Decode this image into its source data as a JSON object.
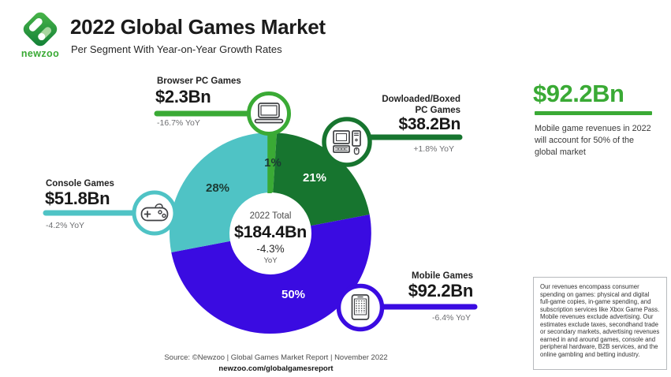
{
  "brand": {
    "wordmark": "newzoo"
  },
  "chart_data": {
    "type": "donut",
    "title": "2022 Global Games Market",
    "subtitle": "Per Segment With Year-on-Year Growth Rates",
    "start_angle_deg": -90,
    "clockwise": true,
    "total": {
      "label": "2022 Total",
      "value": "$184.4Bn",
      "yoy": "-4.3%",
      "yoy_suffix": "YoY"
    },
    "segments": [
      {
        "label": "Browser PC Games",
        "value": "$2.3Bn",
        "share_pct": 1,
        "share_label": "1%",
        "yoy": "-16.7% YoY",
        "color": "#3aaa35",
        "icon": "laptop-icon"
      },
      {
        "label": "Dowloaded/Boxed PC Games",
        "value": "$38.2Bn",
        "share_pct": 21,
        "share_label": "21%",
        "yoy": "+1.8% YoY",
        "color": "#17752f",
        "icon": "desktop-pc-icon"
      },
      {
        "label": "Mobile Games",
        "value": "$92.2Bn",
        "share_pct": 50,
        "share_label": "50%",
        "yoy": "-6.4% YoY",
        "color": "#3a0be1",
        "icon": "smartphone-icon"
      },
      {
        "label": "Console Games",
        "value": "$51.8Bn",
        "share_pct": 28,
        "share_label": "28%",
        "yoy": "-4.2% YoY",
        "color": "#4fc3c5",
        "icon": "gamepad-icon"
      }
    ]
  },
  "highlight": {
    "value": "$92.2Bn",
    "description": "Mobile game revenues in 2022 will account for 50% of the global market"
  },
  "disclaimer": {
    "text": "Our revenues encompass consumer spending on games: physical and digital full-game copies, in-game spending, and subscription services like Xbox Game Pass. Mobile revenues exclude advertising. Our estimates exclude taxes, secondhand trade or secondary markets, advertising revenues earned in and around games, console and peripheral hardware, B2B services, and the online gambling and betting industry."
  },
  "footer": {
    "source": "Source: ©Newzoo | Global Games Market Report | November 2022",
    "url": "newzoo.com/globalgamesreport"
  }
}
